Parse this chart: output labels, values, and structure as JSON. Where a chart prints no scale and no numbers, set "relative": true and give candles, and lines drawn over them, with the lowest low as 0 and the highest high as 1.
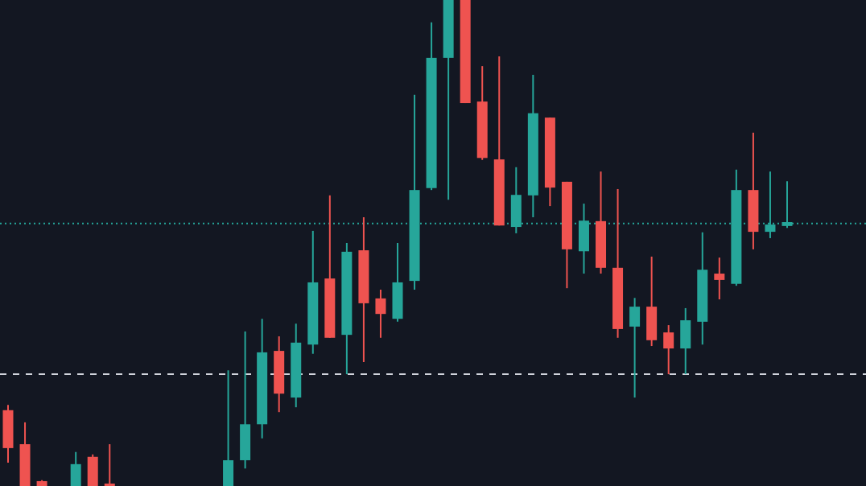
{
  "chart_data": {
    "type": "candlestick",
    "relative": true,
    "categories": [
      null,
      null,
      null,
      null,
      null,
      null,
      null,
      null,
      null,
      null,
      null,
      null,
      null,
      null,
      null,
      null,
      null,
      null,
      null,
      null,
      null,
      null,
      null,
      null,
      null,
      null,
      null,
      null,
      null,
      null,
      null,
      null,
      null,
      null,
      null,
      null,
      null,
      null,
      null,
      null,
      null,
      null,
      null,
      null,
      null,
      null,
      null
    ],
    "ohlc": [
      [
        0.156,
        0.167,
        0.048,
        0.078
      ],
      [
        0.086,
        0.131,
        0,
        0
      ],
      [
        0.01,
        0.012,
        0,
        0
      ],
      null,
      [
        0,
        0.07,
        0,
        0.045
      ],
      [
        0.06,
        0.065,
        0,
        0
      ],
      [
        0.005,
        0.086,
        0,
        0
      ],
      null,
      null,
      null,
      null,
      null,
      null,
      [
        0,
        0.238,
        0,
        0.053
      ],
      [
        0.053,
        0.318,
        0.036,
        0.127
      ],
      [
        0.127,
        0.344,
        0.098,
        0.275
      ],
      [
        0.278,
        0.308,
        0.152,
        0.19
      ],
      [
        0.182,
        0.334,
        0.162,
        0.295
      ],
      [
        0.291,
        0.525,
        0.272,
        0.419
      ],
      [
        0.427,
        0.598,
        0.305,
        0.305
      ],
      [
        0.311,
        0.5,
        0.23,
        0.482
      ],
      [
        0.485,
        0.553,
        0.255,
        0.376
      ],
      [
        0.386,
        0.404,
        0.305,
        0.354
      ],
      [
        0.344,
        0.5,
        0.338,
        0.419
      ],
      [
        0.422,
        0.805,
        0.404,
        0.609
      ],
      [
        0.613,
        0.954,
        0.609,
        0.881
      ],
      [
        0.881,
        1,
        0.589,
        1
      ],
      [
        1,
        1,
        0.788,
        0.788
      ],
      [
        0.791,
        0.864,
        0.671,
        0.675
      ],
      [
        0.672,
        0.884,
        0.536,
        0.536
      ],
      [
        0.533,
        0.656,
        0.52,
        0.599
      ],
      [
        0.598,
        0.846,
        0.553,
        0.767
      ],
      [
        0.758,
        0.758,
        0.576,
        0.614
      ],
      [
        0.626,
        0.626,
        0.407,
        0.487
      ],
      [
        0.483,
        0.581,
        0.437,
        0.546
      ],
      [
        0.545,
        0.647,
        0.437,
        0.449
      ],
      [
        0.449,
        0.611,
        0.305,
        0.323
      ],
      [
        0.328,
        0.387,
        0.182,
        0.369
      ],
      [
        0.369,
        0.472,
        0.288,
        0.3
      ],
      [
        0.316,
        0.331,
        0.23,
        0.283
      ],
      [
        0.283,
        0.366,
        0.23,
        0.341
      ],
      [
        0.338,
        0.522,
        0.291,
        0.445
      ],
      [
        0.437,
        0.47,
        0.384,
        0.424
      ],
      [
        0.416,
        0.651,
        0.412,
        0.609
      ],
      [
        0.609,
        0.727,
        0.487,
        0.523
      ],
      [
        0.523,
        0.647,
        0.51,
        0.538
      ],
      [
        0.535,
        0.627,
        0.531,
        0.543
      ]
    ],
    "colors": [
      "#ef5350",
      "#ef5350",
      "#ef5350",
      null,
      "#26a69a",
      "#ef5350",
      "#ef5350",
      null,
      null,
      null,
      null,
      null,
      null,
      "#26a69a",
      "#26a69a",
      "#26a69a",
      "#ef5350",
      "#26a69a",
      "#26a69a",
      "#ef5350",
      "#26a69a",
      "#ef5350",
      "#ef5350",
      "#26a69a",
      "#26a69a",
      "#26a69a",
      "#26a69a",
      "#ef5350",
      "#ef5350",
      "#ef5350",
      "#26a69a",
      "#26a69a",
      "#ef5350",
      "#ef5350",
      "#26a69a",
      "#ef5350",
      "#ef5350",
      "#26a69a",
      "#ef5350",
      "#ef5350",
      "#26a69a",
      "#26a69a",
      "#ef5350",
      "#26a69a",
      "#ef5350",
      "#26a69a",
      "#26a69a"
    ],
    "ref_lines": [
      {
        "axis": "y",
        "value": 0.23,
        "color": "#d1d4dc",
        "line_style": "dashed"
      },
      {
        "axis": "y",
        "value": 0.54,
        "color": "#26a69a",
        "line_style": "dotted"
      }
    ]
  }
}
